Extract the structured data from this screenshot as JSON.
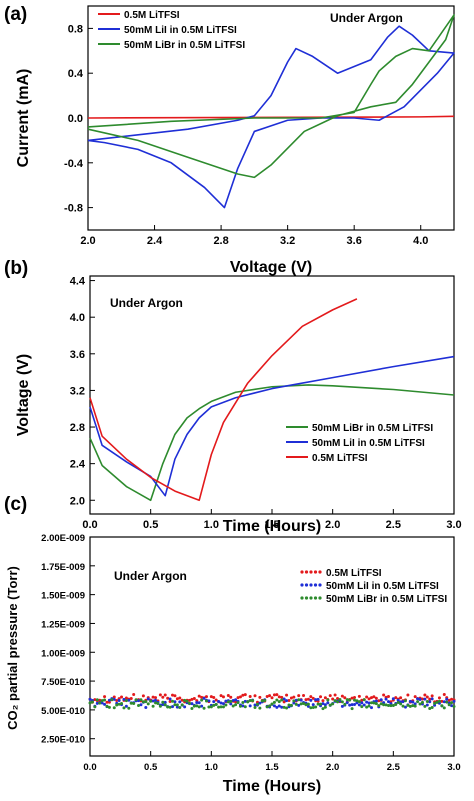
{
  "chart_data": [
    {
      "panel": "(a)",
      "type": "line",
      "xlabel": "Voltage (V)",
      "ylabel": "Current (mA)",
      "annotation": "Under Argon",
      "xlim": [
        2.0,
        4.2
      ],
      "ylim": [
        -1.0,
        1.0
      ],
      "xticks": [
        2.0,
        2.4,
        2.8,
        3.2,
        3.6,
        4.0
      ],
      "xtick_labels": [
        "2.0",
        "2.4",
        "2.8",
        "3.2",
        "3.6",
        "4.0"
      ],
      "yticks": [
        -0.8,
        -0.4,
        0.0,
        0.4,
        0.8
      ],
      "ytick_labels": [
        "-0.8",
        "-0.4",
        "0.0",
        "0.4",
        "0.8"
      ],
      "legend": "top-left",
      "series": [
        {
          "name": "0.5M LiTFSI",
          "color": "#e31a1c",
          "x": [
            2.0,
            2.5,
            3.0,
            3.5,
            4.0,
            4.2
          ],
          "y": [
            0.0,
            0.003,
            0.005,
            0.007,
            0.01,
            0.015
          ]
        },
        {
          "name": "50mM LiI in 0.5M LiTFSI",
          "color": "#1f2fd6",
          "x": [
            2.0,
            2.6,
            2.9,
            3.0,
            3.1,
            3.2,
            3.25,
            3.35,
            3.5,
            3.7,
            3.8,
            3.87,
            3.95,
            4.05,
            4.2,
            4.1,
            3.9,
            3.75,
            3.6,
            3.4,
            3.2,
            3.0,
            2.9,
            2.82,
            2.7,
            2.5,
            2.3,
            2.1,
            2.0
          ],
          "y": [
            -0.2,
            -0.1,
            -0.02,
            0.02,
            0.2,
            0.5,
            0.62,
            0.55,
            0.4,
            0.52,
            0.72,
            0.82,
            0.74,
            0.6,
            0.58,
            0.4,
            0.1,
            -0.02,
            0.0,
            0.0,
            -0.02,
            -0.12,
            -0.45,
            -0.8,
            -0.62,
            -0.4,
            -0.28,
            -0.22,
            -0.2
          ]
        },
        {
          "name": "50mM LiBr in 0.5M LiTFSI",
          "color": "#2e8b2e",
          "x": [
            2.0,
            2.5,
            3.0,
            3.4,
            3.6,
            3.7,
            3.75,
            3.85,
            3.95,
            4.05,
            4.2,
            4.15,
            4.05,
            3.95,
            3.85,
            3.7,
            3.5,
            3.3,
            3.1,
            3.0,
            2.9,
            2.6,
            2.3,
            2.0
          ],
          "y": [
            -0.08,
            -0.03,
            0.0,
            0.0,
            0.05,
            0.3,
            0.42,
            0.55,
            0.62,
            0.6,
            0.92,
            0.7,
            0.5,
            0.3,
            0.14,
            0.1,
            0.02,
            -0.12,
            -0.42,
            -0.53,
            -0.5,
            -0.35,
            -0.2,
            -0.1
          ]
        }
      ]
    },
    {
      "panel": "(b)",
      "type": "line",
      "xlabel": "Time (Hours)",
      "ylabel": "Voltage (V)",
      "annotation": "Under Argon",
      "xlim": [
        0.0,
        3.0
      ],
      "ylim": [
        1.85,
        4.45
      ],
      "xticks": [
        0.0,
        0.5,
        1.0,
        1.5,
        2.0,
        2.5,
        3.0
      ],
      "xtick_labels": [
        "0.0",
        "0.5",
        "1.0",
        "1.5",
        "2.0",
        "2.5",
        "3.0"
      ],
      "yticks": [
        2.0,
        2.4,
        2.8,
        3.2,
        3.6,
        4.0,
        4.4
      ],
      "ytick_labels": [
        "2.0",
        "2.4",
        "2.8",
        "3.2",
        "3.6",
        "4.0",
        "4.4"
      ],
      "legend": "bottom-right",
      "series": [
        {
          "name": "50mM LiBr in 0.5M LiTFSI",
          "color": "#2e8b2e",
          "x": [
            0.0,
            0.1,
            0.3,
            0.5,
            0.6,
            0.7,
            0.8,
            0.9,
            1.0,
            1.2,
            1.5,
            1.8,
            2.0,
            2.5,
            3.0
          ],
          "y": [
            2.68,
            2.38,
            2.15,
            2.0,
            2.4,
            2.72,
            2.9,
            3.0,
            3.08,
            3.18,
            3.24,
            3.26,
            3.25,
            3.21,
            3.15
          ]
        },
        {
          "name": "50mM LiI in 0.5M LiTFSI",
          "color": "#1f2fd6",
          "x": [
            0.0,
            0.1,
            0.3,
            0.5,
            0.62,
            0.7,
            0.8,
            0.9,
            1.0,
            1.2,
            1.5,
            2.0,
            2.5,
            3.0
          ],
          "y": [
            3.02,
            2.6,
            2.42,
            2.26,
            2.05,
            2.45,
            2.72,
            2.9,
            3.02,
            3.12,
            3.22,
            3.34,
            3.46,
            3.57
          ]
        },
        {
          "name": "0.5M LiTFSI",
          "color": "#e31a1c",
          "x": [
            0.0,
            0.1,
            0.3,
            0.5,
            0.7,
            0.9,
            1.0,
            1.1,
            1.3,
            1.5,
            1.75,
            2.0,
            2.2
          ],
          "y": [
            3.12,
            2.7,
            2.45,
            2.25,
            2.1,
            2.0,
            2.5,
            2.85,
            3.28,
            3.58,
            3.9,
            4.08,
            4.2
          ]
        }
      ]
    },
    {
      "panel": "(c)",
      "type": "scatter",
      "xlabel": "Time (Hours)",
      "ylabel": "CO₂ partial pressure (Torr)",
      "annotation": "Under Argon",
      "xlim": [
        0.0,
        3.0
      ],
      "ylim": [
        1e-10,
        2e-09
      ],
      "xticks": [
        0.0,
        0.5,
        1.0,
        1.5,
        2.0,
        2.5,
        3.0
      ],
      "xtick_labels": [
        "0.0",
        "0.5",
        "1.0",
        "1.5",
        "2.0",
        "2.5",
        "3.0"
      ],
      "yticks": [
        2.5e-10,
        5e-10,
        7.5e-10,
        1e-09,
        1.25e-09,
        1.5e-09,
        1.75e-09,
        2e-09
      ],
      "ytick_labels": [
        "2.50E-010",
        "5.00E-010",
        "7.50E-010",
        "1.00E-009",
        "1.25E-009",
        "1.50E-009",
        "1.75E-009",
        "2.00E-009"
      ],
      "legend": "top-right",
      "series": [
        {
          "name": "0.5M LiTFSI",
          "color": "#e31a1c",
          "mean": 6e-10,
          "spread": 3.5e-11
        },
        {
          "name": "50mM LiI in 0.5M LiTFSI",
          "color": "#1f2fd6",
          "mean": 5.6e-10,
          "spread": 4e-11
        },
        {
          "name": "50mM LiBr in 0.5M LiTFSI",
          "color": "#2e8b2e",
          "mean": 5.5e-10,
          "spread": 4e-11
        }
      ]
    }
  ]
}
